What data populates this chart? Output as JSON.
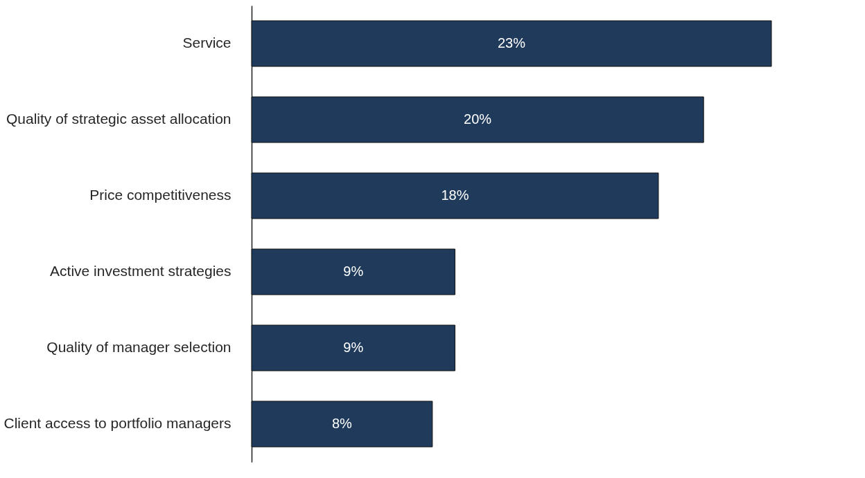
{
  "chart_data": {
    "type": "bar",
    "orientation": "horizontal",
    "categories": [
      "Service",
      "Quality of strategic asset allocation",
      "Price competitiveness",
      "Active investment strategies",
      "Quality of manager selection",
      "Client access to portfolio managers"
    ],
    "values": [
      23,
      20,
      18,
      9,
      9,
      8
    ],
    "value_labels": [
      "23%",
      "20%",
      "18%",
      "9%",
      "9%",
      "8%"
    ],
    "color": "#1f3a5a",
    "grid": false
  }
}
